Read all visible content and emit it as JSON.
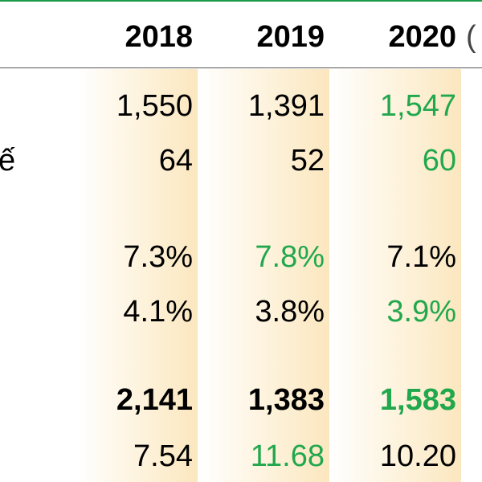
{
  "header": {
    "years": [
      "2018",
      "2019",
      "2020"
    ],
    "clipped_right_text": "("
  },
  "rows": [
    {
      "label_fragment": "",
      "values": [
        "1,550",
        "1,391",
        "1,547"
      ]
    },
    {
      "label_fragment": "ế",
      "values": [
        "64",
        "52",
        "60"
      ]
    },
    {
      "label_fragment": "",
      "values": [
        "7.3%",
        "7.8%",
        "7.1%"
      ]
    },
    {
      "label_fragment": "",
      "values": [
        "4.1%",
        "3.8%",
        "3.9%"
      ]
    },
    {
      "label_fragment": "",
      "values": [
        "2,141",
        "1,383",
        "1,583"
      ]
    },
    {
      "label_fragment": "",
      "values": [
        "7.54",
        "11.68",
        "10.20"
      ]
    }
  ],
  "colors": {
    "highlight_green": "#21a84d",
    "top_rule": "#1a9a4a",
    "column_tint": "#fbe7bf"
  }
}
